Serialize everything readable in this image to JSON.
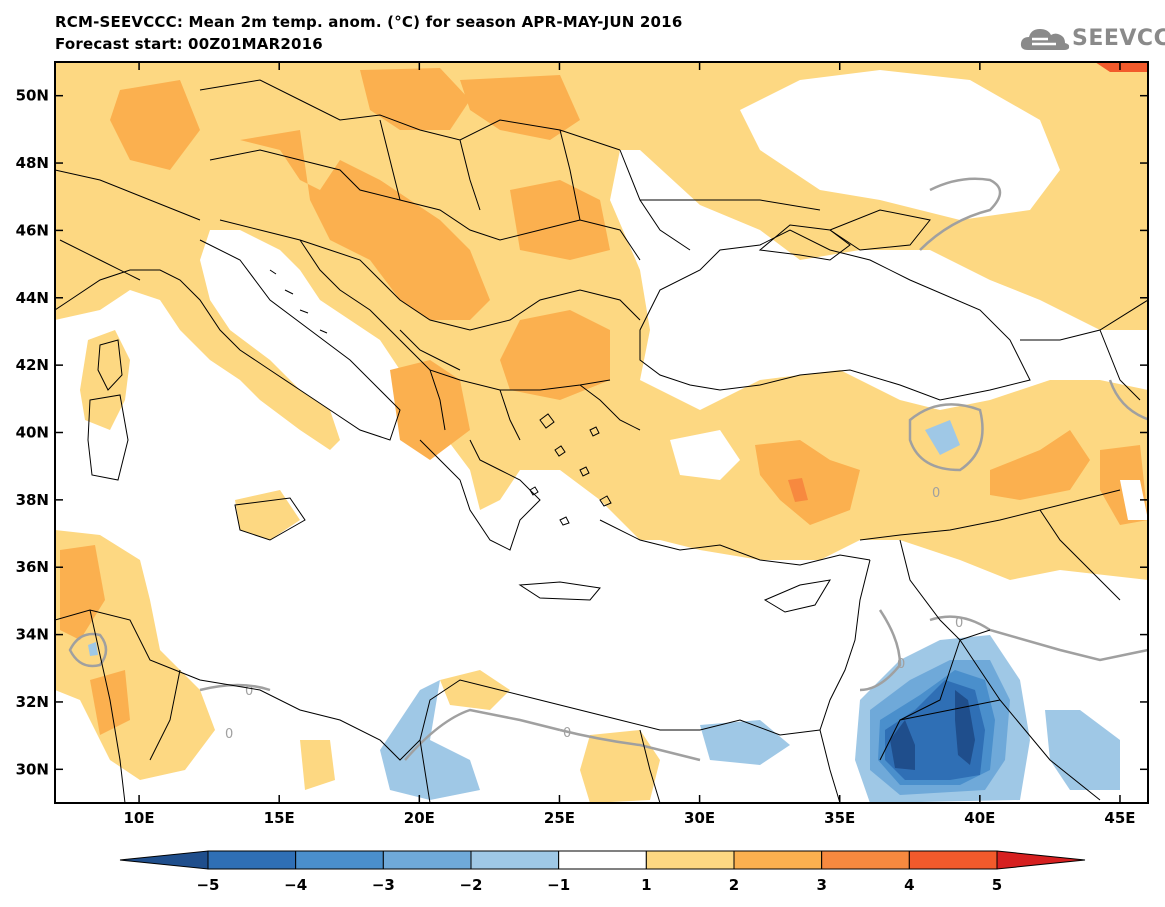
{
  "header": {
    "title": "RCM-SEEVCCC: Mean 2m temp. anom. (°C) for season APR-MAY-JUN 2016",
    "subtitle": "Forecast start: 00Z01MAR2016",
    "logo_text": "SEEVCCC"
  },
  "map": {
    "lon_range": [
      7,
      46
    ],
    "lat_range": [
      29,
      51
    ],
    "lat_ticks": [
      "50N",
      "48N",
      "46N",
      "44N",
      "42N",
      "40N",
      "38N",
      "36N",
      "34N",
      "32N",
      "30N"
    ],
    "lon_ticks": [
      "10E",
      "15E",
      "20E",
      "25E",
      "30E",
      "35E",
      "40E",
      "45E"
    ],
    "contour_label": "0"
  },
  "colorbar": {
    "labels": [
      "−5",
      "−4",
      "−3",
      "−2",
      "−1",
      "1",
      "2",
      "3",
      "4",
      "5"
    ],
    "colors": [
      "#1f4e8c",
      "#2f6fb5",
      "#4a8fcc",
      "#6fa9d9",
      "#9fc8e6",
      "#ffffff",
      "#fdd882",
      "#fbb04f",
      "#f7893f",
      "#f25a2b",
      "#d62020"
    ]
  },
  "colors": {
    "warm1": "#fdd882",
    "warm2": "#fbb04f",
    "warm3": "#f7893f",
    "cool1": "#9fc8e6",
    "cool2": "#6fa9d9",
    "cool3": "#4a8fcc",
    "cool4": "#2f6fb5",
    "cool5": "#1f4e8c",
    "contour": "#a0a0a0"
  }
}
